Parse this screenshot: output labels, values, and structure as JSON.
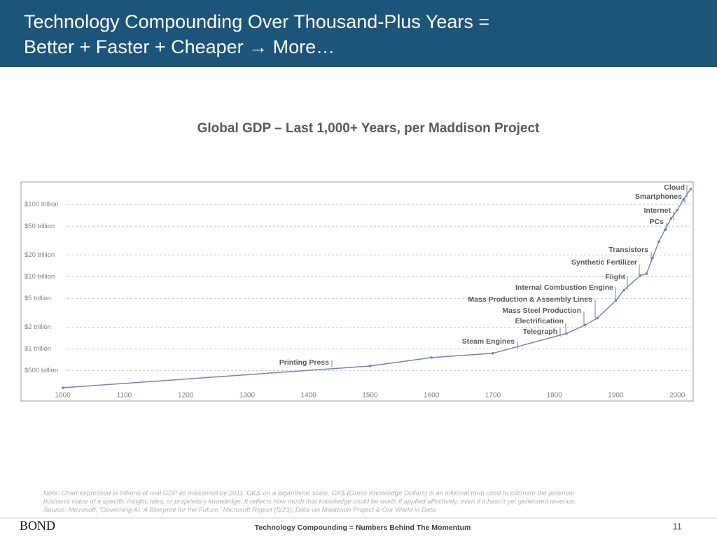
{
  "header": {
    "title_lines": [
      "Technology Compounding Over Thousand-Plus Years =",
      "Better + Faster + Cheaper → More…"
    ]
  },
  "chart_data": {
    "type": "line",
    "title": "Global GDP – Last 1,000+ Years, per Maddison Project",
    "x": [
      1000,
      1500,
      1600,
      1700,
      1820,
      1850,
      1870,
      1900,
      1913,
      1940,
      1950,
      1960,
      1970,
      1980,
      1990,
      2000,
      2010,
      2022
    ],
    "series": [
      {
        "name": "Global GDP",
        "color": "#6f86b3",
        "values": [
          0.29,
          0.58,
          0.76,
          0.87,
          1.64,
          2.14,
          2.67,
          4.68,
          6.5,
          10.4,
          11,
          18.3,
          30.6,
          44.7,
          64,
          83.5,
          117,
          164
        ]
      }
    ],
    "log_scale": true,
    "grid": true,
    "xlim": [
      932,
      2026
    ],
    "xticks": [
      1000,
      1100,
      1200,
      1300,
      1400,
      1500,
      1600,
      1700,
      1800,
      1900,
      2000
    ],
    "ylim": [
      0.19,
      205
    ],
    "yticks": [
      {
        "value": 0.5,
        "label": "$500 billion"
      },
      {
        "value": 1,
        "label": "$1 trillion"
      },
      {
        "value": 2,
        "label": "$2 trillion"
      },
      {
        "value": 5,
        "label": "$5 trillion"
      },
      {
        "value": 10,
        "label": "$10 trillion"
      },
      {
        "value": 20,
        "label": "$20 trillion"
      },
      {
        "value": 50,
        "label": "$50 trillion"
      },
      {
        "value": 100,
        "label": "$100 trillion"
      }
    ],
    "annotations": [
      "Printing Press",
      "Steam Engines",
      "Telegraph",
      "Electrification",
      "Mass Steel Production",
      "Mass Production & Assembly Lines",
      "Internal Combustion Engine",
      "Flight",
      "Synthetic Fertilizer",
      "Transistors",
      "PCs",
      "Internet",
      "Smartphones",
      "Cloud"
    ]
  },
  "note_lines": [
    "Note: Chart expressed in trillions of real GDP as measured by 2011 ‘GK$’ on a logarithmic scale. GK$ (Gross Knowledge Dollars) is an informal term used to estimate the potential",
    "business value of a specific insight, idea, or proprietary knowledge. It reflects how much that knowledge could be worth if applied effectively, even if it hasn’t yet generated revenue.",
    "Source: Microsoft, ‘Governing AI: A Blueprint for the Future,’ Microsoft Report (5/23); Data via Maddison Project & Our World in Data"
  ],
  "footer": {
    "logo": "BOND",
    "center": "Technology Compounding = Numbers Behind The Momentum",
    "page": "11"
  }
}
